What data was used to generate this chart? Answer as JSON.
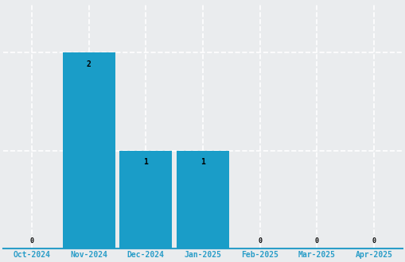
{
  "categories": [
    "Oct-2024",
    "Nov-2024",
    "Dec-2024",
    "Jan-2025",
    "Feb-2025",
    "Mar-2025",
    "Apr-2025"
  ],
  "values": [
    0,
    2,
    1,
    1,
    0,
    0,
    0
  ],
  "bar_color": "#1a9dc8",
  "background_color": "#eaecee",
  "grid_color": "#ffffff",
  "text_color": "#2a9dc8",
  "bar_label_color": "#000000",
  "ylim": [
    0,
    2.5
  ],
  "figsize": [
    5.1,
    3.3
  ],
  "dpi": 100
}
